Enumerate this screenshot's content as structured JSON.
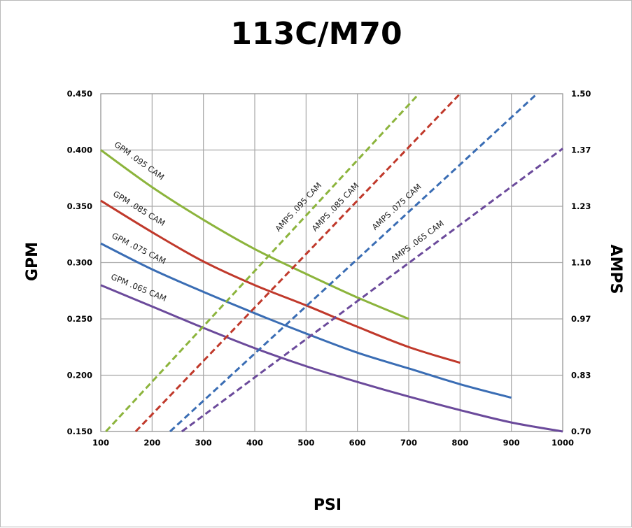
{
  "chart_data": {
    "type": "line",
    "title": "113C/M70",
    "xlabel": "PSI",
    "ylabel": "GPM",
    "y2label": "AMPS",
    "xlim": [
      100,
      1000
    ],
    "ylim": [
      0.15,
      0.45
    ],
    "y2lim": [
      0.7,
      1.5
    ],
    "grid": true,
    "x_ticks": [
      "100",
      "200",
      "300",
      "400",
      "500",
      "600",
      "700",
      "800",
      "900",
      "1000"
    ],
    "y_ticks": [
      "0.150",
      "0.200",
      "0.250",
      "0.300",
      "0.350",
      "0.400",
      "0.450"
    ],
    "y2_ticks": [
      "0.70",
      "0.83",
      "0.97",
      "1.10",
      "1.23",
      "1.37",
      "1.50"
    ],
    "series": [
      {
        "name": "GPM .095 CAM",
        "axis": "left",
        "style": "solid",
        "color": "#8cb43c",
        "x": [
          100,
          200,
          300,
          400,
          500,
          600,
          700
        ],
        "y": [
          0.4,
          0.367,
          0.338,
          0.312,
          0.29,
          0.269,
          0.25
        ]
      },
      {
        "name": "GPM .085 CAM",
        "axis": "left",
        "style": "solid",
        "color": "#c0392b",
        "x": [
          100,
          200,
          300,
          400,
          500,
          600,
          700,
          800
        ],
        "y": [
          0.355,
          0.327,
          0.301,
          0.28,
          0.262,
          0.243,
          0.225,
          0.211
        ]
      },
      {
        "name": "GPM .075 CAM",
        "axis": "left",
        "style": "solid",
        "color": "#3a6db4",
        "x": [
          100,
          200,
          300,
          400,
          500,
          600,
          700,
          800,
          900
        ],
        "y": [
          0.317,
          0.294,
          0.274,
          0.255,
          0.237,
          0.22,
          0.206,
          0.192,
          0.18
        ]
      },
      {
        "name": "GPM .065 CAM",
        "axis": "left",
        "style": "solid",
        "color": "#6b4a9b",
        "x": [
          100,
          200,
          300,
          400,
          500,
          600,
          700,
          800,
          900,
          1000
        ],
        "y": [
          0.28,
          0.261,
          0.242,
          0.224,
          0.208,
          0.194,
          0.181,
          0.169,
          0.158,
          0.15
        ]
      },
      {
        "name": "AMPS .095 CAM",
        "axis": "right",
        "style": "dashed",
        "color": "#8cb43c",
        "x": [
          110,
          720
        ],
        "y": [
          0.7,
          1.5
        ]
      },
      {
        "name": "AMPS .085 CAM",
        "axis": "right",
        "style": "dashed",
        "color": "#c0392b",
        "x": [
          168,
          800
        ],
        "y": [
          0.7,
          1.5
        ]
      },
      {
        "name": "AMPS .075 CAM",
        "axis": "right",
        "style": "dashed",
        "color": "#3a6db4",
        "x": [
          235,
          950
        ],
        "y": [
          0.7,
          1.5
        ]
      },
      {
        "name": "AMPS .065 CAM",
        "axis": "right",
        "style": "dashed",
        "color": "#6b4a9b",
        "x": [
          258,
          1000
        ],
        "y": [
          0.7,
          1.37
        ]
      }
    ]
  }
}
